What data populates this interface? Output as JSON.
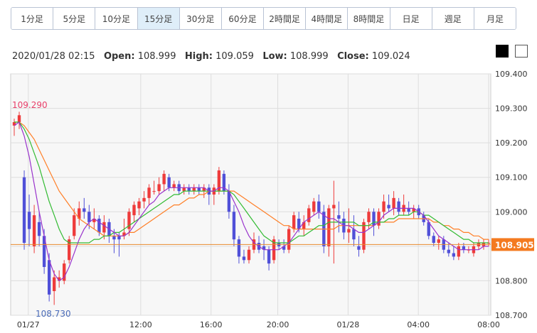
{
  "timeframe_tabs": [
    {
      "label": "1分足",
      "active": false
    },
    {
      "label": "5分足",
      "active": false
    },
    {
      "label": "10分足",
      "active": false
    },
    {
      "label": "15分足",
      "active": true
    },
    {
      "label": "30分足",
      "active": false
    },
    {
      "label": "60分足",
      "active": false
    },
    {
      "label": "2時間足",
      "active": false
    },
    {
      "label": "4時間足",
      "active": false
    },
    {
      "label": "8時間足",
      "active": false
    },
    {
      "label": "日足",
      "active": false
    },
    {
      "label": "週足",
      "active": false
    },
    {
      "label": "月足",
      "active": false
    }
  ],
  "ohlc_info": {
    "datetime": "2020/01/28 02:15",
    "open_label": "Open:",
    "open": "108.999",
    "high_label": "High:",
    "high": "109.059",
    "low_label": "Low:",
    "low": "108.999",
    "close_label": "Close:",
    "close": "109.024"
  },
  "theme_swatches": [
    {
      "name": "dark",
      "color": "#000000"
    },
    {
      "name": "light",
      "color": "#ffffff"
    }
  ],
  "colors": {
    "up": "#ee3b3b",
    "down": "#5050d8",
    "ma_short": "#9933cc",
    "ma_mid": "#33bb33",
    "ma_long": "#ff7f27",
    "current_price_line": "#e88a2e",
    "current_price_badge": "#f47a20",
    "high_annotation": "#e8406a",
    "low_annotation": "#4a6bb8",
    "grid": "#dddddd",
    "plot_bg": "#f7f7f7"
  },
  "chart_data": {
    "type": "candlestick",
    "symbol_unit": "price",
    "ylim": [
      108.7,
      109.4
    ],
    "y_ticks": [
      "109.400",
      "109.300",
      "109.200",
      "109.100",
      "109.000",
      "108.900",
      "108.800",
      "108.700"
    ],
    "x_ticks": [
      "01/27",
      "12:00",
      "16:00",
      "20:00",
      "01/28",
      "04:00",
      "08:00"
    ],
    "current_price": "108.905",
    "high_annotation": "109.290",
    "low_annotation": "108.730",
    "candles": [
      [
        109.25,
        109.27,
        109.22,
        109.26
      ],
      [
        109.26,
        109.29,
        109.24,
        109.28
      ],
      [
        109.1,
        109.12,
        108.89,
        108.91
      ],
      [
        109.0,
        109.05,
        108.9,
        108.95
      ],
      [
        108.9,
        109.02,
        108.88,
        108.99
      ],
      [
        108.97,
        109.0,
        108.9,
        108.93
      ],
      [
        108.93,
        108.95,
        108.82,
        108.84
      ],
      [
        108.86,
        108.88,
        108.74,
        108.76
      ],
      [
        108.77,
        108.83,
        108.73,
        108.81
      ],
      [
        108.8,
        108.83,
        108.78,
        108.81
      ],
      [
        108.8,
        108.86,
        108.79,
        108.85
      ],
      [
        108.86,
        108.93,
        108.85,
        108.92
      ],
      [
        108.93,
        109.01,
        108.92,
        108.99
      ],
      [
        108.98,
        109.03,
        108.96,
        109.01
      ],
      [
        109.01,
        109.04,
        108.98,
        109.0
      ],
      [
        109.0,
        109.02,
        108.95,
        108.97
      ],
      [
        108.97,
        109.01,
        108.95,
        108.98
      ],
      [
        108.98,
        108.99,
        108.93,
        108.94
      ],
      [
        108.94,
        108.99,
        108.92,
        108.97
      ],
      [
        108.97,
        108.98,
        108.91,
        108.93
      ],
      [
        108.93,
        108.95,
        108.88,
        108.92
      ],
      [
        108.93,
        108.94,
        108.87,
        108.92
      ],
      [
        108.93,
        108.98,
        108.92,
        108.94
      ],
      [
        108.95,
        109.01,
        108.93,
        109.0
      ],
      [
        108.99,
        109.03,
        108.97,
        109.02
      ],
      [
        109.01,
        109.04,
        108.99,
        109.03
      ],
      [
        109.03,
        109.06,
        109.01,
        109.04
      ],
      [
        109.04,
        109.08,
        109.02,
        109.07
      ],
      [
        109.06,
        109.09,
        109.05,
        109.06
      ],
      [
        109.06,
        109.1,
        109.05,
        109.08
      ],
      [
        109.08,
        109.12,
        109.06,
        109.11
      ],
      [
        109.1,
        109.11,
        109.06,
        109.07
      ],
      [
        109.07,
        109.09,
        109.06,
        109.08
      ],
      [
        109.08,
        109.09,
        109.05,
        109.06
      ],
      [
        109.06,
        109.08,
        109.05,
        109.07
      ],
      [
        109.07,
        109.08,
        109.05,
        109.06
      ],
      [
        109.06,
        109.08,
        109.05,
        109.07
      ],
      [
        109.07,
        109.08,
        109.05,
        109.06
      ],
      [
        109.06,
        109.08,
        109.04,
        109.07
      ],
      [
        109.07,
        109.08,
        109.02,
        109.05
      ],
      [
        109.05,
        109.08,
        109.02,
        109.07
      ],
      [
        109.06,
        109.13,
        109.05,
        109.12
      ],
      [
        109.11,
        109.12,
        109.05,
        109.06
      ],
      [
        109.06,
        109.08,
        108.98,
        109.0
      ],
      [
        109.0,
        109.02,
        108.9,
        108.92
      ],
      [
        108.92,
        108.93,
        108.85,
        108.87
      ],
      [
        108.87,
        108.89,
        108.85,
        108.86
      ],
      [
        108.86,
        108.9,
        108.85,
        108.89
      ],
      [
        108.89,
        108.94,
        108.88,
        108.92
      ],
      [
        108.91,
        108.93,
        108.88,
        108.89
      ],
      [
        108.9,
        108.92,
        108.86,
        108.89
      ],
      [
        108.89,
        108.9,
        108.83,
        108.85
      ],
      [
        108.86,
        108.93,
        108.85,
        108.92
      ],
      [
        108.91,
        108.92,
        108.89,
        108.9
      ],
      [
        108.9,
        108.92,
        108.88,
        108.89
      ],
      [
        108.89,
        108.96,
        108.88,
        108.95
      ],
      [
        108.95,
        109.0,
        108.94,
        108.99
      ],
      [
        108.98,
        109.0,
        108.94,
        108.95
      ],
      [
        108.95,
        108.99,
        108.93,
        108.97
      ],
      [
        108.97,
        109.02,
        108.96,
        109.01
      ],
      [
        109.0,
        109.04,
        108.99,
        109.03
      ],
      [
        109.03,
        109.05,
        108.98,
        109.0
      ],
      [
        109.0,
        109.02,
        108.88,
        108.9
      ],
      [
        108.9,
        109.02,
        108.87,
        109.01
      ],
      [
        109.01,
        109.09,
        108.85,
        109.02
      ],
      [
        108.99,
        109.03,
        108.94,
        108.98
      ],
      [
        108.98,
        109.0,
        108.92,
        108.94
      ],
      [
        108.94,
        109.01,
        108.91,
        108.95
      ],
      [
        108.95,
        108.99,
        108.9,
        108.92
      ],
      [
        108.9,
        108.93,
        108.87,
        108.89
      ],
      [
        108.89,
        108.98,
        108.88,
        108.97
      ],
      [
        108.97,
        109.01,
        108.95,
        109.0
      ],
      [
        109.0,
        109.01,
        108.93,
        108.96
      ],
      [
        108.96,
        109.01,
        108.95,
        109.0
      ],
      [
        109.0,
        109.05,
        108.98,
        109.03
      ],
      [
        109.02,
        109.05,
        109.0,
        109.01
      ],
      [
        109.01,
        109.06,
        108.99,
        109.04
      ],
      [
        109.03,
        109.04,
        108.99,
        109.0
      ],
      [
        109.0,
        109.05,
        108.99,
        109.02
      ],
      [
        109.01,
        109.03,
        108.99,
        109.0
      ],
      [
        109.0,
        109.02,
        108.98,
        109.01
      ],
      [
        109.01,
        109.02,
        108.98,
        108.99
      ],
      [
        108.99,
        109.0,
        108.96,
        108.97
      ],
      [
        108.97,
        108.98,
        108.92,
        108.93
      ],
      [
        108.93,
        108.94,
        108.9,
        108.91
      ],
      [
        108.91,
        108.93,
        108.89,
        108.92
      ],
      [
        108.92,
        108.93,
        108.88,
        108.89
      ],
      [
        108.89,
        108.91,
        108.87,
        108.88
      ],
      [
        108.88,
        108.9,
        108.86,
        108.87
      ],
      [
        108.87,
        108.91,
        108.86,
        108.9
      ],
      [
        108.9,
        108.91,
        108.88,
        108.89
      ],
      [
        108.89,
        108.9,
        108.88,
        108.89
      ],
      [
        108.88,
        108.91,
        108.87,
        108.9
      ],
      [
        108.9,
        108.92,
        108.89,
        108.91
      ],
      [
        108.9,
        108.92,
        108.89,
        108.91
      ],
      [
        108.91,
        108.92,
        108.9,
        108.91
      ]
    ],
    "ma_short": [
      109.25,
      109.26,
      109.22,
      109.16,
      109.08,
      109.0,
      108.93,
      108.86,
      108.82,
      108.8,
      108.81,
      108.84,
      108.88,
      108.92,
      108.95,
      108.97,
      108.98,
      108.97,
      108.96,
      108.95,
      108.94,
      108.93,
      108.93,
      108.94,
      108.96,
      108.98,
      109.0,
      109.02,
      109.03,
      109.05,
      109.06,
      109.07,
      109.07,
      109.07,
      109.07,
      109.07,
      109.07,
      109.07,
      109.07,
      109.06,
      109.06,
      109.07,
      109.07,
      109.06,
      109.03,
      109.0,
      108.96,
      108.93,
      108.91,
      108.9,
      108.89,
      108.89,
      108.89,
      108.89,
      108.9,
      108.91,
      108.93,
      108.95,
      108.97,
      108.98,
      108.99,
      109.0,
      108.99,
      108.98,
      108.98,
      108.97,
      108.96,
      108.96,
      108.95,
      108.94,
      108.94,
      108.95,
      108.96,
      108.97,
      108.99,
      109.0,
      109.01,
      109.01,
      109.01,
      109.01,
      109.01,
      109.0,
      108.99,
      108.97,
      108.95,
      108.93,
      108.92,
      108.91,
      108.9,
      108.89,
      108.89,
      108.89,
      108.89,
      108.89,
      108.9,
      108.9
    ],
    "ma_mid": [
      109.26,
      109.26,
      109.24,
      109.21,
      109.17,
      109.13,
      109.08,
      109.03,
      108.99,
      108.95,
      108.92,
      108.91,
      108.91,
      108.91,
      108.91,
      108.91,
      108.92,
      108.92,
      108.93,
      108.93,
      108.94,
      108.94,
      108.95,
      108.96,
      108.97,
      108.98,
      108.99,
      109.0,
      109.01,
      109.02,
      109.03,
      109.04,
      109.05,
      109.05,
      109.06,
      109.06,
      109.06,
      109.06,
      109.06,
      109.06,
      109.06,
      109.06,
      109.06,
      109.06,
      109.05,
      109.03,
      109.01,
      108.99,
      108.97,
      108.95,
      108.93,
      108.92,
      108.91,
      108.91,
      108.91,
      108.91,
      108.92,
      108.93,
      108.93,
      108.94,
      108.95,
      108.96,
      108.96,
      108.97,
      108.97,
      108.97,
      108.97,
      108.97,
      108.97,
      108.96,
      108.96,
      108.96,
      108.97,
      108.97,
      108.97,
      108.98,
      108.98,
      108.99,
      108.99,
      108.99,
      109.0,
      109.0,
      108.99,
      108.99,
      108.98,
      108.97,
      108.96,
      108.95,
      108.94,
      108.93,
      108.92,
      108.92,
      108.91,
      108.91,
      108.91,
      108.91
    ],
    "ma_long": [
      109.26,
      109.26,
      109.25,
      109.23,
      109.21,
      109.18,
      109.15,
      109.12,
      109.09,
      109.06,
      109.04,
      109.02,
      109.0,
      108.98,
      108.97,
      108.96,
      108.95,
      108.94,
      108.93,
      108.93,
      108.93,
      108.93,
      108.93,
      108.94,
      108.94,
      108.95,
      108.96,
      108.97,
      108.98,
      108.99,
      109.0,
      109.01,
      109.02,
      109.02,
      109.03,
      109.04,
      109.04,
      109.05,
      109.05,
      109.06,
      109.06,
      109.06,
      109.06,
      109.06,
      109.06,
      109.05,
      109.04,
      109.03,
      109.02,
      109.01,
      109.0,
      108.99,
      108.98,
      108.97,
      108.96,
      108.96,
      108.95,
      108.95,
      108.95,
      108.95,
      108.95,
      108.95,
      108.95,
      108.95,
      108.95,
      108.96,
      108.96,
      108.96,
      108.96,
      108.96,
      108.96,
      108.96,
      108.96,
      108.97,
      108.97,
      108.97,
      108.97,
      108.98,
      108.98,
      108.98,
      108.98,
      108.98,
      108.98,
      108.98,
      108.97,
      108.97,
      108.96,
      108.96,
      108.95,
      108.95,
      108.94,
      108.94,
      108.93,
      108.93,
      108.92,
      108.92
    ]
  }
}
